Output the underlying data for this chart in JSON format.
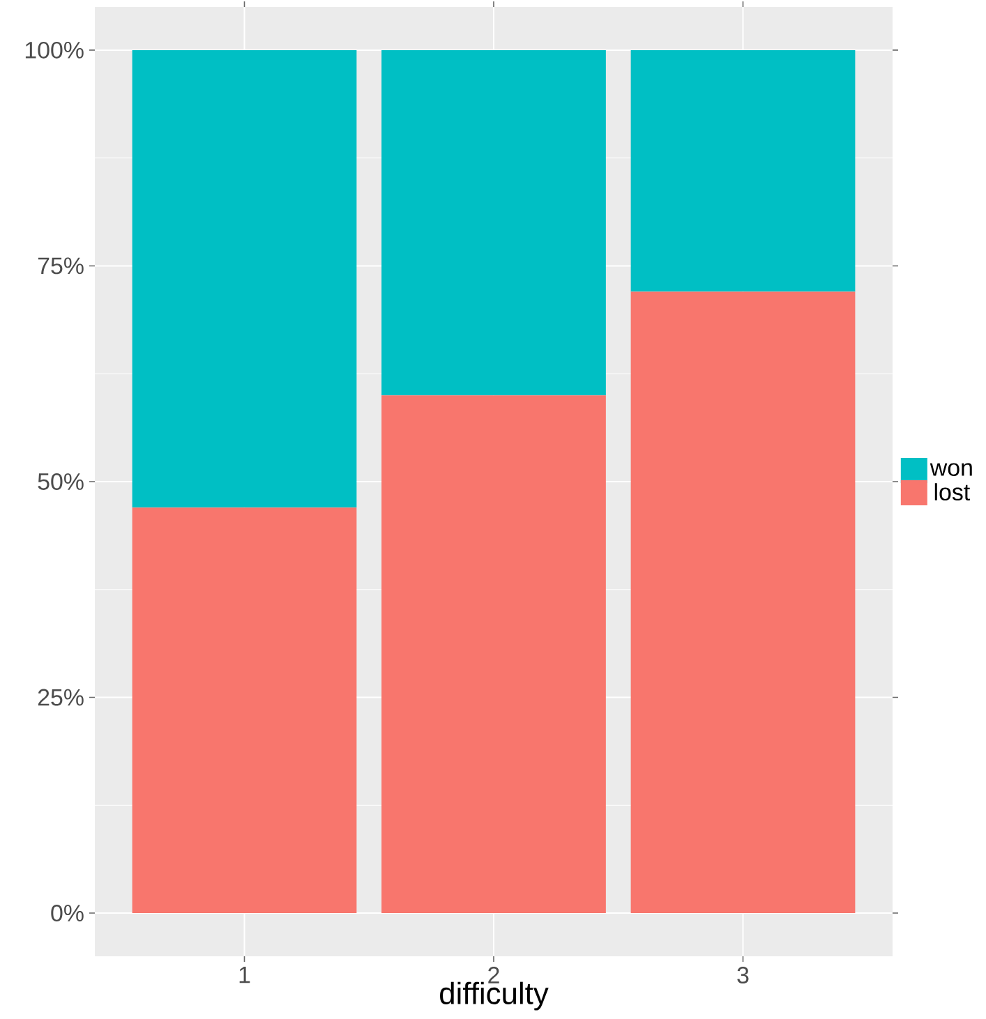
{
  "chart_data": {
    "type": "bar",
    "stacked": true,
    "xlabel": "difficulty",
    "categories": [
      "1",
      "2",
      "3"
    ],
    "series": [
      {
        "name": "lost",
        "color": "#f8766d",
        "values": [
          47,
          60,
          72
        ]
      },
      {
        "name": "won",
        "color": "#00bfc4",
        "values": [
          53,
          40,
          28
        ]
      }
    ],
    "ylim": [
      -5,
      105
    ],
    "yticks": [
      {
        "value": 0,
        "label": "0%"
      },
      {
        "value": 25,
        "label": "25%"
      },
      {
        "value": 50,
        "label": "50%"
      },
      {
        "value": 75,
        "label": "75%"
      },
      {
        "value": 100,
        "label": "100%"
      }
    ],
    "grid": true,
    "legend": "right"
  }
}
